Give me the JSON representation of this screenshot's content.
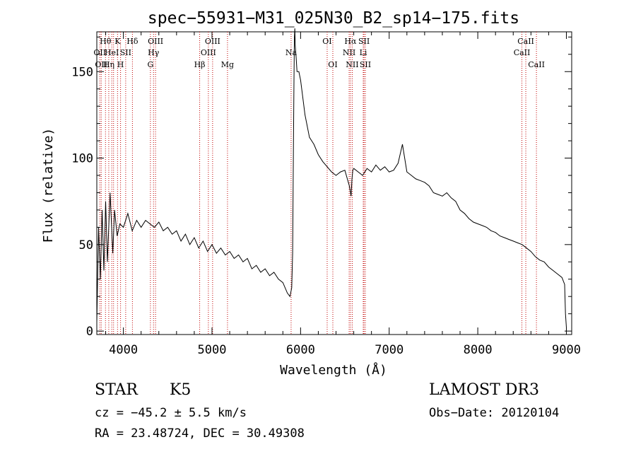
{
  "chart_data": {
    "type": "line",
    "title": "spec−55931−M31_025N30_B2_sp14−175.fits",
    "xlabel": "Wavelength (Å)",
    "ylabel": "Flux (relative)",
    "xlim": [
      3700,
      9060
    ],
    "ylim": [
      -2,
      173
    ],
    "xticks": [
      4000,
      5000,
      6000,
      7000,
      8000,
      9000
    ],
    "yticks": [
      0,
      50,
      100,
      150
    ],
    "xminor_step": 200,
    "yminor_step": 10,
    "grid": false,
    "series": [
      {
        "name": "spectrum",
        "x": [
          3700,
          3720,
          3740,
          3760,
          3780,
          3800,
          3820,
          3850,
          3880,
          3900,
          3930,
          3960,
          4000,
          4050,
          4100,
          4150,
          4200,
          4250,
          4300,
          4350,
          4400,
          4450,
          4500,
          4550,
          4600,
          4650,
          4700,
          4750,
          4800,
          4850,
          4900,
          4950,
          5000,
          5050,
          5100,
          5150,
          5200,
          5250,
          5300,
          5350,
          5400,
          5450,
          5500,
          5550,
          5600,
          5650,
          5700,
          5750,
          5800,
          5850,
          5880,
          5900,
          5910,
          5920,
          5925,
          5930,
          5935,
          5940,
          5950,
          5960,
          5980,
          6000,
          6050,
          6100,
          6150,
          6200,
          6250,
          6300,
          6350,
          6400,
          6450,
          6500,
          6550,
          6570,
          6580,
          6590,
          6600,
          6650,
          6700,
          6750,
          6800,
          6850,
          6900,
          6950,
          7000,
          7050,
          7100,
          7150,
          7200,
          7250,
          7300,
          7350,
          7400,
          7450,
          7500,
          7550,
          7600,
          7650,
          7700,
          7750,
          7800,
          7850,
          7900,
          7950,
          8000,
          8050,
          8100,
          8150,
          8200,
          8250,
          8300,
          8350,
          8400,
          8450,
          8500,
          8550,
          8600,
          8650,
          8700,
          8750,
          8800,
          8850,
          8900,
          8950,
          8980,
          8990,
          9000
        ],
        "y": [
          5,
          60,
          30,
          70,
          35,
          75,
          40,
          80,
          45,
          70,
          55,
          62,
          60,
          68,
          58,
          64,
          60,
          64,
          62,
          60,
          63,
          58,
          60,
          56,
          58,
          52,
          56,
          50,
          54,
          48,
          52,
          46,
          50,
          45,
          48,
          44,
          46,
          42,
          44,
          40,
          42,
          36,
          38,
          34,
          36,
          32,
          34,
          30,
          28,
          22,
          20,
          25,
          45,
          110,
          145,
          170,
          175,
          165,
          158,
          150,
          150,
          145,
          125,
          112,
          108,
          102,
          98,
          95,
          92,
          90,
          92,
          93,
          84,
          78,
          88,
          93,
          94,
          92,
          90,
          94,
          92,
          96,
          93,
          95,
          92,
          93,
          97,
          108,
          92,
          90,
          88,
          87,
          86,
          84,
          80,
          79,
          78,
          80,
          77,
          75,
          70,
          68,
          65,
          63,
          62,
          61,
          60,
          58,
          57,
          55,
          54,
          53,
          52,
          51,
          50,
          48,
          46,
          43,
          41,
          40,
          37,
          35,
          33,
          31,
          27,
          10,
          2
        ]
      }
    ],
    "lines": [
      {
        "w": 3734,
        "label": "OII",
        "row": 2
      },
      {
        "w": 3750,
        "label": "OII",
        "row": 3
      },
      {
        "w": 3798,
        "label": "Hθ",
        "row": 1
      },
      {
        "w": 3835,
        "label": "Hη",
        "row": 3
      },
      {
        "w": 3869,
        "label": "HeI",
        "row": 2
      },
      {
        "w": 3889,
        "label": "",
        "row": 0
      },
      {
        "w": 3934,
        "label": "K",
        "row": 1
      },
      {
        "w": 3968,
        "label": "H",
        "row": 3
      },
      {
        "w": 4026,
        "label": "SII",
        "row": 2
      },
      {
        "w": 4102,
        "label": "Hδ",
        "row": 1
      },
      {
        "w": 4305,
        "label": "G",
        "row": 3
      },
      {
        "w": 4340,
        "label": "Hγ",
        "row": 2
      },
      {
        "w": 4363,
        "label": "OIII",
        "row": 1
      },
      {
        "w": 4861,
        "label": "Hβ",
        "row": 3
      },
      {
        "w": 4959,
        "label": "OIII",
        "row": 2
      },
      {
        "w": 5007,
        "label": "OIII",
        "row": 1
      },
      {
        "w": 5175,
        "label": "Mg",
        "row": 3
      },
      {
        "w": 5893,
        "label": "Na",
        "row": 2
      },
      {
        "w": 6300,
        "label": "OI",
        "row": 1
      },
      {
        "w": 6364,
        "label": "OI",
        "row": 3
      },
      {
        "w": 6548,
        "label": "NII",
        "row": 2
      },
      {
        "w": 6563,
        "label": "Hα",
        "row": 1
      },
      {
        "w": 6583,
        "label": "NII",
        "row": 3
      },
      {
        "w": 6707,
        "label": "Li",
        "row": 2
      },
      {
        "w": 6716,
        "label": "SII",
        "row": 1
      },
      {
        "w": 6731,
        "label": "SII",
        "row": 3
      },
      {
        "w": 8498,
        "label": "CaII",
        "row": 2
      },
      {
        "w": 8542,
        "label": "CaII",
        "row": 1
      },
      {
        "w": 8662,
        "label": "CaII",
        "row": 3
      }
    ]
  },
  "footer": {
    "object_class": "STAR",
    "subclass": "K5",
    "survey": "LAMOST DR3",
    "cz": "cz = −45.2 ± 5.5 km/s",
    "obs_date": "Obs−Date: 20120104",
    "radec": "RA =  23.48724, DEC =  30.49308"
  }
}
